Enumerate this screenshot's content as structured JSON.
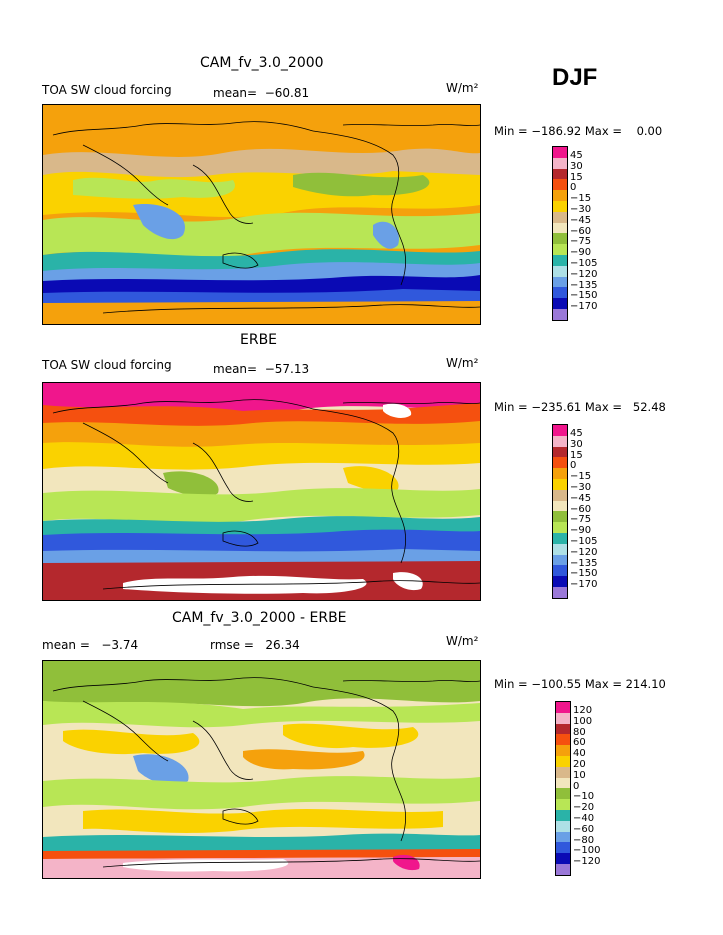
{
  "season": "DJF",
  "panels": [
    {
      "title": "CAM_fv_3.0_2000",
      "left_label": "TOA SW cloud forcing",
      "center_label": "mean=  −60.81",
      "units": "W/m²",
      "stats": "Min = −186.92 Max =    0.00",
      "levels": [
        "45",
        "30",
        "15",
        "0",
        "−15",
        "−30",
        "−45",
        "−60",
        "−75",
        "−90",
        "−105",
        "−120",
        "−135",
        "−150",
        "−170"
      ]
    },
    {
      "title": "ERBE",
      "left_label": "TOA SW cloud forcing",
      "center_label": "mean=  −57.13",
      "units": "W/m²",
      "stats": "Min = −235.61 Max =   52.48",
      "levels": [
        "45",
        "30",
        "15",
        "0",
        "−15",
        "−30",
        "−45",
        "−60",
        "−75",
        "−90",
        "−105",
        "−120",
        "−135",
        "−150",
        "−170"
      ]
    },
    {
      "title": "CAM_fv_3.0_2000 - ERBE",
      "left_label": "mean =   −3.74",
      "center_label": "rmse =   26.34",
      "units": "W/m²",
      "stats": "Min = −100.55 Max = 214.10",
      "levels": [
        "120",
        "100",
        "80",
        "60",
        "40",
        "20",
        "10",
        "0",
        "−10",
        "−20",
        "−40",
        "−60",
        "−80",
        "−100",
        "−120"
      ]
    }
  ],
  "colors": {
    "bar": [
      "#f0168c",
      "#f4b4c8",
      "#b4282d",
      "#f5500f",
      "#f5a10c",
      "#fad200",
      "#d9b88a",
      "#f2e6bd",
      "#90bf3a",
      "#b8e655",
      "#2ab3a8",
      "#aee0e6",
      "#6aa0e6",
      "#3058dc",
      "#0a0ab4",
      "#9a78d8"
    ]
  }
}
